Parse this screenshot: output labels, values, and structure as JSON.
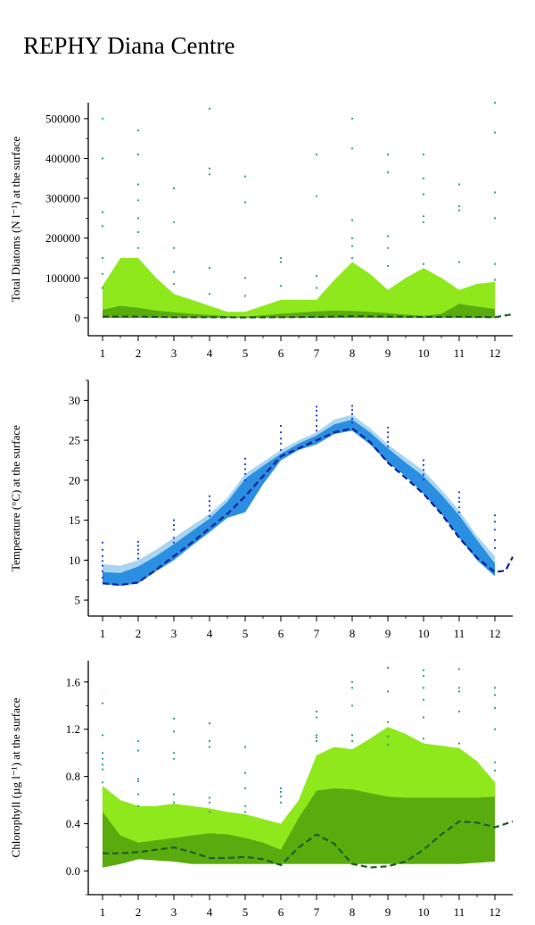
{
  "title": "REPHY Diana Centre",
  "chart_data": [
    {
      "type": "area",
      "ylabel": "Total Diatoms (N l⁻¹) at the surface",
      "x_ticks": [
        "1",
        "2",
        "3",
        "4",
        "5",
        "6",
        "7",
        "8",
        "9",
        "10",
        "11",
        "12"
      ],
      "y_ticks": [
        "0",
        "100000",
        "200000",
        "300000",
        "400000",
        "500000"
      ],
      "xlim": [
        0.6,
        12.5
      ],
      "ylim": [
        -45000,
        540000
      ],
      "colors": {
        "outer": "#8ee81c",
        "inner": "#5aab0e",
        "median": "#1f5c25",
        "points": "#2a9a7a"
      },
      "outer_band": {
        "x": [
          1,
          1.5,
          2,
          2.5,
          3,
          3.5,
          4,
          4.5,
          5,
          5.5,
          6,
          6.5,
          7,
          7.5,
          8,
          8.5,
          9,
          9.5,
          10,
          10.5,
          11,
          11.5,
          12
        ],
        "upper": [
          80000,
          150000,
          150000,
          100000,
          60000,
          45000,
          30000,
          15000,
          15000,
          30000,
          45000,
          45000,
          45000,
          95000,
          140000,
          110000,
          70000,
          100000,
          125000,
          100000,
          70000,
          85000,
          90000
        ],
        "lower": [
          0,
          0,
          0,
          0,
          0,
          0,
          0,
          0,
          0,
          0,
          0,
          0,
          0,
          0,
          0,
          0,
          0,
          0,
          0,
          0,
          0,
          0,
          0
        ]
      },
      "inner_band": {
        "x": [
          1,
          1.5,
          2,
          2.5,
          3,
          3.5,
          4,
          4.5,
          5,
          5.5,
          6,
          6.5,
          7,
          7.5,
          8,
          8.5,
          9,
          9.5,
          10,
          10.5,
          11,
          11.5,
          12
        ],
        "upper": [
          20000,
          30000,
          25000,
          18000,
          14000,
          10000,
          7000,
          4000,
          3000,
          6000,
          10000,
          13000,
          16000,
          18000,
          17000,
          15000,
          12000,
          8000,
          5000,
          10000,
          35000,
          28000,
          22000
        ],
        "lower": [
          0,
          0,
          0,
          0,
          0,
          0,
          0,
          0,
          0,
          0,
          0,
          0,
          0,
          0,
          0,
          0,
          0,
          0,
          0,
          0,
          0,
          0,
          0
        ]
      },
      "median": {
        "x": [
          1,
          2,
          3,
          4,
          5,
          6,
          7,
          8,
          9,
          10,
          11,
          12,
          12.5
        ],
        "y": [
          3000,
          3000,
          1500,
          1500,
          1000,
          1500,
          2000,
          4000,
          3000,
          2000,
          2500,
          1500,
          9000
        ]
      },
      "points": {
        "x": [
          1,
          1,
          1,
          1,
          1,
          1,
          1,
          2,
          2,
          2,
          2,
          2,
          2,
          2,
          3,
          3,
          3,
          3,
          3,
          4,
          4,
          4,
          4,
          4,
          5,
          5,
          5,
          5,
          6,
          6,
          6,
          7,
          7,
          7,
          7,
          8,
          8,
          8,
          8,
          8,
          8,
          9,
          9,
          9,
          9,
          9,
          10,
          10,
          10,
          10,
          10,
          10,
          11,
          11,
          11,
          11,
          12,
          12,
          12,
          12,
          12,
          12
        ],
        "y": [
          500000,
          400000,
          265000,
          230000,
          150000,
          110000,
          75000,
          470000,
          410000,
          335000,
          295000,
          250000,
          215000,
          175000,
          325000,
          240000,
          175000,
          115000,
          85000,
          525000,
          375000,
          360000,
          125000,
          60000,
          355000,
          290000,
          100000,
          55000,
          150000,
          140000,
          80000,
          410000,
          305000,
          105000,
          75000,
          500000,
          425000,
          245000,
          200000,
          180000,
          150000,
          410000,
          365000,
          205000,
          175000,
          130000,
          410000,
          350000,
          310000,
          255000,
          240000,
          135000,
          335000,
          280000,
          270000,
          140000,
          540000,
          465000,
          315000,
          250000,
          135000,
          95000
        ]
      }
    },
    {
      "type": "area",
      "ylabel": "Temperature (°C) at the surface",
      "x_ticks": [
        "1",
        "2",
        "3",
        "4",
        "5",
        "6",
        "7",
        "8",
        "9",
        "10",
        "11",
        "12"
      ],
      "y_ticks": [
        "5",
        "10",
        "15",
        "20",
        "25",
        "30"
      ],
      "xlim": [
        0.6,
        12.5
      ],
      "ylim": [
        3,
        32.5
      ],
      "colors": {
        "outer": "#a9d4f0",
        "inner": "#2a8fe0",
        "median": "#0d1f9e",
        "points": "#1a3bd6"
      },
      "outer_band": {
        "x": [
          1,
          1.5,
          2,
          2.5,
          3,
          3.5,
          4,
          4.5,
          5,
          5.5,
          6,
          6.5,
          7,
          7.5,
          8,
          8.5,
          9,
          9.5,
          10,
          10.5,
          11,
          11.5,
          12
        ],
        "upper": [
          9.5,
          9.3,
          10,
          11.3,
          12.8,
          14.3,
          15.8,
          17.8,
          20.8,
          22.3,
          23.8,
          25,
          26,
          27.6,
          28.2,
          26.5,
          24.5,
          22.8,
          21.2,
          18.8,
          16.2,
          13,
          10.5
        ],
        "lower": [
          7,
          6.8,
          7.1,
          8.6,
          10,
          11.8,
          13.5,
          15.3,
          16,
          19.5,
          22.5,
          23.8,
          24.5,
          25.8,
          26.2,
          24.5,
          22.2,
          20.5,
          18.3,
          15.8,
          12.8,
          10,
          8
        ]
      },
      "inner_band": {
        "x": [
          1,
          1.5,
          2,
          2.5,
          3,
          3.5,
          4,
          4.5,
          5,
          5.5,
          6,
          6.5,
          7,
          7.5,
          8,
          8.5,
          9,
          9.5,
          10,
          10.5,
          11,
          11.5,
          12
        ],
        "upper": [
          8.5,
          8.4,
          9.2,
          10.5,
          12,
          13.6,
          15.2,
          17.3,
          20.2,
          21.8,
          23.3,
          24.6,
          25.6,
          27,
          27.6,
          26,
          24,
          22.2,
          20.5,
          18.2,
          15.6,
          12.5,
          9.6
        ],
        "lower": [
          7,
          6.8,
          7.1,
          8.6,
          10,
          11.8,
          13.5,
          15.3,
          16,
          19.5,
          22.5,
          23.8,
          24.5,
          25.8,
          26.2,
          24.5,
          22.2,
          20.5,
          18.3,
          15.8,
          12.8,
          10,
          8
        ]
      },
      "median": {
        "x": [
          1,
          1.5,
          2,
          2.5,
          3,
          3.5,
          4,
          4.5,
          5,
          5.5,
          6,
          6.5,
          7,
          7.5,
          8,
          8.5,
          9,
          9.5,
          10,
          10.5,
          11,
          11.5,
          12,
          12.3,
          12.5
        ],
        "y": [
          7.1,
          6.9,
          7.2,
          8.8,
          10.5,
          12.2,
          14,
          15.8,
          18,
          20.5,
          23,
          24,
          25,
          26,
          26.5,
          24.8,
          22.2,
          20.3,
          18.3,
          15.8,
          12.8,
          10.3,
          8.5,
          8.7,
          10.4
        ]
      },
      "points": {
        "x": [
          1,
          1,
          1,
          1,
          1,
          1,
          1,
          2,
          2,
          2,
          2,
          2,
          3,
          3,
          3,
          3,
          3,
          4,
          4,
          4,
          4,
          4,
          5,
          5,
          5,
          5,
          5,
          6,
          6,
          6,
          6,
          6,
          7,
          7,
          7,
          7,
          7,
          7,
          8,
          8,
          8,
          8,
          8,
          9,
          9,
          9,
          9,
          9,
          10,
          10,
          10,
          10,
          10,
          11,
          11,
          11,
          11,
          11,
          12,
          12,
          12,
          12,
          12
        ],
        "y": [
          12.2,
          11.3,
          10.5,
          9.9,
          9.3,
          8.6,
          7.8,
          12.3,
          11.8,
          11.3,
          10.8,
          10.2,
          15,
          14.4,
          13.8,
          12.8,
          12.2,
          18,
          17.4,
          16.8,
          16.2,
          15.5,
          22.7,
          22,
          21.4,
          20.8,
          20,
          26.8,
          26,
          25.2,
          24.6,
          23.8,
          29.2,
          28.7,
          28.1,
          27.5,
          26.8,
          26.2,
          29.3,
          28.8,
          28.3,
          27.7,
          27.2,
          26.6,
          26,
          25.4,
          24.8,
          24.2,
          22.5,
          21.9,
          21.3,
          20.7,
          20.1,
          18.5,
          17.8,
          17.3,
          16.6,
          16,
          15.6,
          14.8,
          13.8,
          12.5,
          11.5
        ]
      }
    },
    {
      "type": "area",
      "ylabel": "Chlorophyll (µg l⁻¹) at the surface",
      "x_ticks": [
        "1",
        "2",
        "3",
        "4",
        "5",
        "6",
        "7",
        "8",
        "9",
        "10",
        "11",
        "12"
      ],
      "y_ticks": [
        "0.0",
        "0.4",
        "0.8",
        "1.2",
        "1.6"
      ],
      "xlim": [
        0.6,
        12.5
      ],
      "ylim": [
        -0.2,
        1.78
      ],
      "colors": {
        "outer": "#8ee81c",
        "inner": "#5aab0e",
        "median": "#1f5c25",
        "points": "#2a9a7a"
      },
      "outer_band": {
        "x": [
          1,
          1.5,
          2,
          2.5,
          3,
          3.5,
          4,
          4.5,
          5,
          5.5,
          6,
          6.5,
          7,
          7.5,
          8,
          8.5,
          9,
          9.5,
          10,
          10.5,
          11,
          11.5,
          12
        ],
        "upper": [
          0.72,
          0.6,
          0.55,
          0.55,
          0.57,
          0.55,
          0.53,
          0.5,
          0.48,
          0.44,
          0.4,
          0.6,
          0.98,
          1.05,
          1.03,
          1.12,
          1.22,
          1.16,
          1.08,
          1.06,
          1.04,
          0.93,
          0.75
        ],
        "lower": [
          0.03,
          0.06,
          0.1,
          0.09,
          0.08,
          0.06,
          0.06,
          0.06,
          0.06,
          0.06,
          0.06,
          0.06,
          0.06,
          0.06,
          0.06,
          0.06,
          0.06,
          0.06,
          0.06,
          0.06,
          0.06,
          0.07,
          0.08
        ]
      },
      "inner_band": {
        "x": [
          1,
          1.5,
          2,
          2.5,
          3,
          3.5,
          4,
          4.5,
          5,
          5.5,
          6,
          6.5,
          7,
          7.5,
          8,
          8.5,
          9,
          9.5,
          10,
          10.5,
          11,
          11.5,
          12
        ],
        "upper": [
          0.5,
          0.3,
          0.24,
          0.26,
          0.28,
          0.3,
          0.32,
          0.31,
          0.28,
          0.24,
          0.18,
          0.45,
          0.68,
          0.7,
          0.69,
          0.66,
          0.63,
          0.62,
          0.62,
          0.62,
          0.62,
          0.62,
          0.63
        ],
        "lower": [
          0.03,
          0.06,
          0.1,
          0.09,
          0.08,
          0.06,
          0.06,
          0.06,
          0.06,
          0.06,
          0.06,
          0.06,
          0.06,
          0.06,
          0.06,
          0.06,
          0.06,
          0.06,
          0.06,
          0.06,
          0.06,
          0.07,
          0.08
        ]
      },
      "median": {
        "x": [
          1,
          1.5,
          2,
          2.5,
          3,
          3.5,
          4,
          4.5,
          5,
          5.5,
          6,
          6.5,
          7,
          7.5,
          8,
          8.5,
          9,
          9.5,
          10,
          10.5,
          11,
          11.5,
          12,
          12.5
        ],
        "y": [
          0.15,
          0.15,
          0.16,
          0.18,
          0.2,
          0.16,
          0.11,
          0.11,
          0.12,
          0.1,
          0.05,
          0.2,
          0.31,
          0.23,
          0.06,
          0.03,
          0.04,
          0.08,
          0.18,
          0.31,
          0.42,
          0.41,
          0.37,
          0.42
        ]
      },
      "points": {
        "x": [
          1,
          1,
          1,
          1,
          1,
          1,
          1,
          2,
          2,
          2,
          2,
          2,
          2,
          3,
          3,
          3,
          3,
          3,
          3,
          4,
          4,
          4,
          4,
          4,
          4,
          5,
          5,
          5,
          5,
          5,
          6,
          6,
          6,
          6,
          7,
          7,
          7,
          7,
          7,
          8,
          8,
          8,
          8,
          8,
          9,
          9,
          9,
          9,
          9,
          10,
          10,
          10,
          10,
          10,
          10,
          11,
          11,
          11,
          11,
          11,
          12,
          12,
          12,
          12,
          12,
          12
        ],
        "y": [
          1.42,
          1.15,
          1.0,
          0.95,
          0.9,
          0.86,
          0.75,
          1.1,
          1.02,
          0.78,
          0.76,
          0.65,
          0.55,
          1.29,
          1.18,
          1.0,
          0.95,
          0.65,
          0.58,
          1.25,
          1.1,
          1.05,
          0.62,
          0.58,
          0.5,
          1.05,
          0.83,
          0.7,
          0.55,
          0.5,
          0.7,
          0.67,
          0.63,
          0.58,
          1.35,
          1.3,
          1.15,
          1.13,
          1.1,
          1.6,
          1.55,
          1.4,
          1.15,
          1.1,
          1.72,
          1.52,
          1.26,
          1.14,
          1.07,
          1.7,
          1.65,
          1.55,
          1.45,
          1.3,
          1.12,
          1.71,
          1.55,
          1.52,
          1.35,
          1.08,
          1.55,
          1.49,
          1.38,
          1.2,
          0.92,
          0.85
        ]
      }
    }
  ]
}
